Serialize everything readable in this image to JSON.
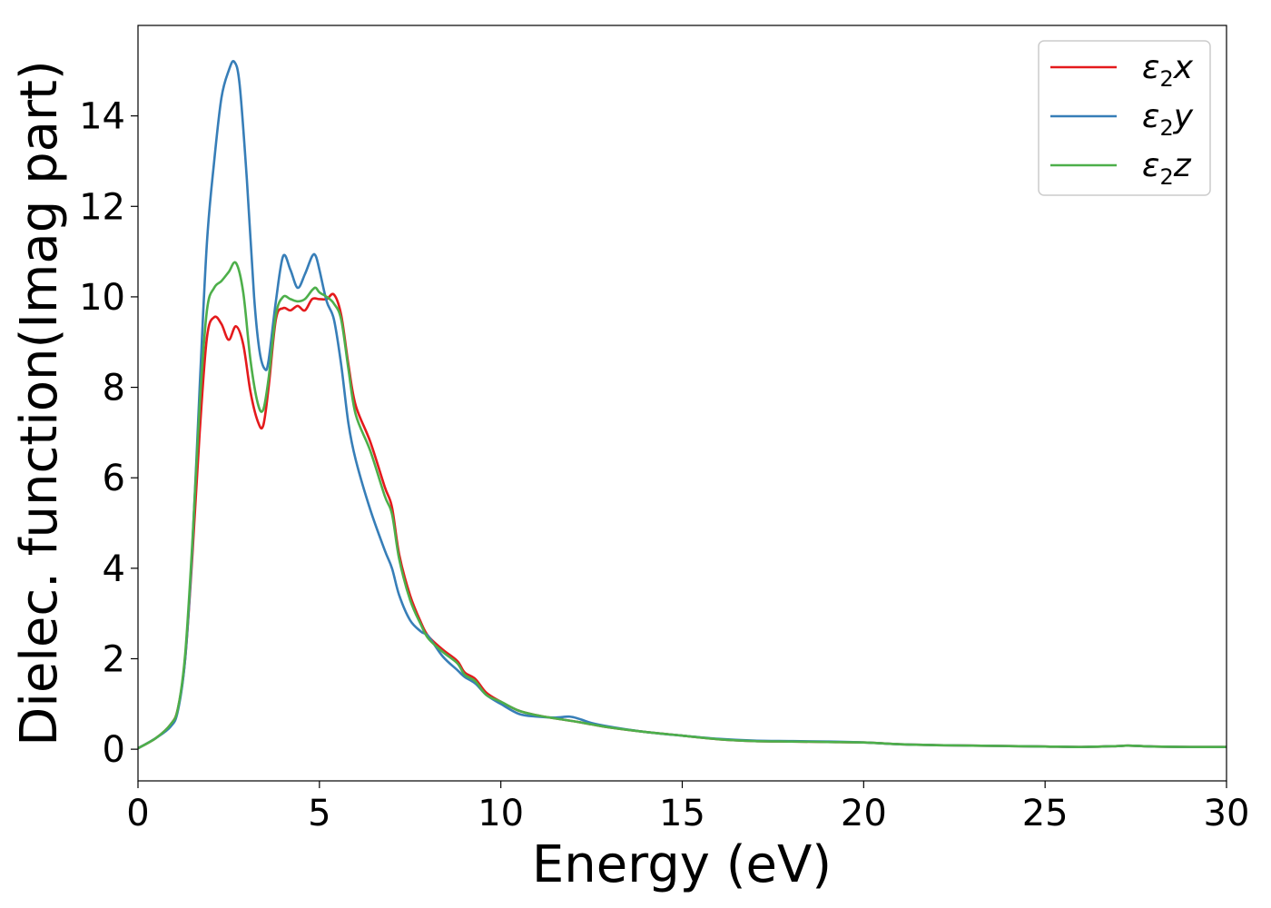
{
  "chart_data": {
    "type": "line",
    "title": "",
    "xlabel": "Energy (eV)",
    "ylabel": "Dielec. function(Imag part)",
    "xlim": [
      0,
      30
    ],
    "ylim": [
      -0.7,
      16
    ],
    "xticks": [
      0,
      5,
      10,
      15,
      20,
      25,
      30
    ],
    "yticks": [
      0,
      2,
      4,
      6,
      8,
      10,
      12,
      14
    ],
    "grid": false,
    "legend_position": "top-right",
    "series": [
      {
        "name": "ε2x",
        "label_base": "ε",
        "label_sub": "2",
        "label_tail": "x",
        "color": "#e41a1c",
        "x": [
          0,
          0.5,
          0.9,
          1.1,
          1.3,
          1.5,
          1.7,
          1.9,
          2.1,
          2.3,
          2.5,
          2.7,
          2.9,
          3.1,
          3.3,
          3.45,
          3.6,
          3.8,
          4.0,
          4.2,
          4.4,
          4.6,
          4.8,
          5.0,
          5.2,
          5.4,
          5.6,
          5.8,
          6.0,
          6.4,
          6.8,
          7.0,
          7.2,
          7.5,
          7.8,
          8.0,
          8.4,
          8.8,
          9.0,
          9.3,
          9.6,
          10.0,
          10.5,
          11.0,
          11.5,
          12.0,
          12.5,
          13.0,
          14.0,
          15.0,
          16.0,
          17.0,
          18.0,
          19.0,
          20.0,
          21.0,
          22.0,
          23.0,
          24.0,
          25.0,
          26.0,
          27.0,
          27.3,
          28.0,
          29.0,
          30.0
        ],
        "y": [
          0.02,
          0.25,
          0.55,
          0.9,
          2.0,
          4.3,
          7.0,
          9.1,
          9.55,
          9.4,
          9.05,
          9.35,
          8.95,
          7.9,
          7.25,
          7.15,
          8.0,
          9.5,
          9.75,
          9.7,
          9.8,
          9.7,
          9.95,
          9.95,
          9.95,
          10.05,
          9.6,
          8.5,
          7.6,
          6.8,
          5.8,
          5.35,
          4.3,
          3.4,
          2.8,
          2.5,
          2.2,
          1.95,
          1.7,
          1.55,
          1.25,
          1.05,
          0.85,
          0.75,
          0.68,
          0.62,
          0.55,
          0.48,
          0.38,
          0.3,
          0.22,
          0.18,
          0.17,
          0.16,
          0.15,
          0.11,
          0.09,
          0.08,
          0.07,
          0.06,
          0.05,
          0.07,
          0.08,
          0.06,
          0.05,
          0.05
        ]
      },
      {
        "name": "ε2y",
        "label_base": "ε",
        "label_sub": "2",
        "label_tail": "y",
        "color": "#377eb8",
        "x": [
          0,
          0.5,
          0.9,
          1.1,
          1.3,
          1.5,
          1.7,
          1.9,
          2.1,
          2.3,
          2.5,
          2.65,
          2.8,
          3.0,
          3.2,
          3.35,
          3.5,
          3.6,
          3.8,
          4.0,
          4.2,
          4.4,
          4.6,
          4.8,
          4.9,
          5.0,
          5.2,
          5.4,
          5.6,
          5.8,
          6.0,
          6.4,
          6.8,
          7.0,
          7.2,
          7.5,
          7.8,
          8.0,
          8.4,
          8.8,
          9.0,
          9.3,
          9.6,
          10.0,
          10.5,
          11.0,
          11.5,
          11.9,
          12.2,
          12.5,
          13.0,
          14.0,
          15.0,
          16.0,
          17.0,
          18.0,
          19.0,
          20.0,
          21.0,
          22.0,
          23.0,
          24.0,
          25.0,
          26.0,
          27.0,
          27.3,
          28.0,
          29.0,
          30.0
        ],
        "y": [
          0.02,
          0.25,
          0.5,
          0.85,
          2.0,
          4.5,
          8.0,
          11.2,
          13.0,
          14.4,
          15.0,
          15.2,
          14.7,
          12.6,
          10.0,
          8.8,
          8.4,
          8.6,
          9.9,
          10.9,
          10.6,
          10.2,
          10.5,
          10.9,
          10.9,
          10.6,
          9.9,
          9.5,
          8.5,
          7.2,
          6.4,
          5.3,
          4.4,
          4.0,
          3.4,
          2.85,
          2.6,
          2.5,
          2.05,
          1.75,
          1.6,
          1.45,
          1.2,
          1.0,
          0.78,
          0.72,
          0.7,
          0.72,
          0.66,
          0.58,
          0.5,
          0.38,
          0.3,
          0.23,
          0.19,
          0.18,
          0.17,
          0.15,
          0.11,
          0.09,
          0.08,
          0.07,
          0.06,
          0.05,
          0.07,
          0.08,
          0.06,
          0.05,
          0.05
        ]
      },
      {
        "name": "ε2z",
        "label_base": "ε",
        "label_sub": "2",
        "label_tail": "z",
        "color": "#4daf4a",
        "x": [
          0,
          0.5,
          0.9,
          1.1,
          1.3,
          1.5,
          1.7,
          1.9,
          2.1,
          2.3,
          2.5,
          2.7,
          2.9,
          3.1,
          3.3,
          3.45,
          3.6,
          3.8,
          4.0,
          4.2,
          4.4,
          4.6,
          4.8,
          4.9,
          5.0,
          5.2,
          5.4,
          5.6,
          5.8,
          6.0,
          6.4,
          6.8,
          7.0,
          7.2,
          7.5,
          7.8,
          8.0,
          8.4,
          8.8,
          9.0,
          9.3,
          9.6,
          10.0,
          10.5,
          11.0,
          11.5,
          12.0,
          12.5,
          13.0,
          14.0,
          15.0,
          16.0,
          17.0,
          18.0,
          19.0,
          20.0,
          21.0,
          22.0,
          23.0,
          24.0,
          25.0,
          26.0,
          27.0,
          27.3,
          28.0,
          29.0,
          30.0
        ],
        "y": [
          0.02,
          0.25,
          0.55,
          0.9,
          2.1,
          4.6,
          7.6,
          9.7,
          10.2,
          10.35,
          10.55,
          10.75,
          10.1,
          8.6,
          7.65,
          7.5,
          8.2,
          9.6,
          10.0,
          9.95,
          9.9,
          9.95,
          10.15,
          10.2,
          10.1,
          10.0,
          9.85,
          9.5,
          8.4,
          7.4,
          6.6,
          5.6,
          5.2,
          4.2,
          3.3,
          2.75,
          2.45,
          2.15,
          1.9,
          1.65,
          1.5,
          1.2,
          1.05,
          0.85,
          0.75,
          0.68,
          0.62,
          0.55,
          0.48,
          0.38,
          0.3,
          0.22,
          0.18,
          0.17,
          0.16,
          0.15,
          0.11,
          0.09,
          0.08,
          0.07,
          0.06,
          0.05,
          0.07,
          0.08,
          0.06,
          0.05,
          0.05
        ]
      }
    ]
  }
}
